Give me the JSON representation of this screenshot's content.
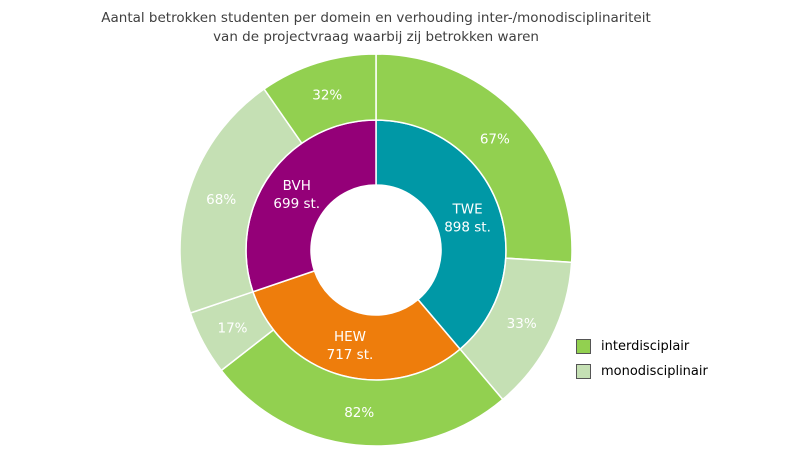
{
  "chart_data": {
    "type": "sunburst",
    "title_line1": "Aantal betrokken studenten per domein en verhouding inter-/monodisciplinariteit",
    "title_line2": "van de projectvraag waarbij zij betrokken waren",
    "inner": [
      {
        "label": "TWE",
        "value": 898,
        "value_label": "898 st.",
        "color": "#0098A6"
      },
      {
        "label": "HEW",
        "value": 717,
        "value_label": "717 st.",
        "color": "#EE7D0C"
      },
      {
        "label": "BVH",
        "value": 699,
        "value_label": "699 st.",
        "color": "#940078"
      }
    ],
    "outer": [
      {
        "domain": "TWE",
        "series": "interdisciplair",
        "percent": 67,
        "label": "67%"
      },
      {
        "domain": "TWE",
        "series": "monodisciplinair",
        "percent": 33,
        "label": "33%"
      },
      {
        "domain": "HEW",
        "series": "interdisciplair",
        "percent": 82,
        "label": "82%"
      },
      {
        "domain": "HEW",
        "series": "monodisciplinair",
        "percent": 17,
        "label": "17%"
      },
      {
        "domain": "BVH",
        "series": "monodisciplinair",
        "percent": 68,
        "label": "68%"
      },
      {
        "domain": "BVH",
        "series": "interdisciplair",
        "percent": 32,
        "label": "32%"
      }
    ],
    "legend": [
      {
        "label": "interdisciplair",
        "color": "#92D050"
      },
      {
        "label": "monodisciplinair",
        "color": "#C5E0B4"
      }
    ],
    "legend_position": "right"
  }
}
